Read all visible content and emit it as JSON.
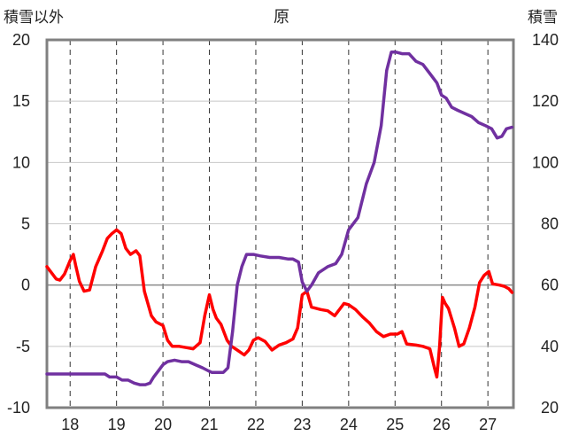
{
  "chart_data": {
    "type": "line",
    "title": "原",
    "ylabel_left": "積雪以外",
    "ylabel_right": "積雪",
    "x_ticks": [
      "18",
      "19",
      "20",
      "21",
      "22",
      "23",
      "24",
      "25",
      "26",
      "27"
    ],
    "xlim": [
      17.5,
      27.55
    ],
    "ylim_left": [
      -10,
      20
    ],
    "ylim_right": [
      20,
      140
    ],
    "y_ticks_left": [
      "-10",
      "-5",
      "0",
      "5",
      "10",
      "15",
      "20"
    ],
    "y_ticks_right": [
      "20",
      "40",
      "60",
      "80",
      "100",
      "120",
      "140"
    ],
    "grid": true,
    "series": [
      {
        "axis": "left",
        "color": "#ff0000",
        "points": [
          [
            17.5,
            1.5
          ],
          [
            17.6,
            1.0
          ],
          [
            17.7,
            0.5
          ],
          [
            17.78,
            0.4
          ],
          [
            17.88,
            0.9
          ],
          [
            18.0,
            2.0
          ],
          [
            18.07,
            2.5
          ],
          [
            18.12,
            1.6
          ],
          [
            18.2,
            0.3
          ],
          [
            18.3,
            -0.5
          ],
          [
            18.42,
            -0.4
          ],
          [
            18.55,
            1.5
          ],
          [
            18.7,
            2.8
          ],
          [
            18.8,
            3.8
          ],
          [
            18.9,
            4.2
          ],
          [
            19.0,
            4.5
          ],
          [
            19.1,
            4.2
          ],
          [
            19.2,
            3.0
          ],
          [
            19.3,
            2.5
          ],
          [
            19.42,
            2.8
          ],
          [
            19.5,
            2.4
          ],
          [
            19.6,
            -0.5
          ],
          [
            19.75,
            -2.5
          ],
          [
            19.85,
            -3.0
          ],
          [
            20.0,
            -3.3
          ],
          [
            20.1,
            -4.5
          ],
          [
            20.2,
            -5.0
          ],
          [
            20.35,
            -5.0
          ],
          [
            20.5,
            -5.1
          ],
          [
            20.65,
            -5.2
          ],
          [
            20.8,
            -4.7
          ],
          [
            20.9,
            -2.5
          ],
          [
            21.0,
            -0.8
          ],
          [
            21.08,
            -2.0
          ],
          [
            21.15,
            -2.7
          ],
          [
            21.25,
            -3.2
          ],
          [
            21.38,
            -4.5
          ],
          [
            21.48,
            -5.0
          ],
          [
            21.6,
            -5.3
          ],
          [
            21.75,
            -5.7
          ],
          [
            21.85,
            -5.3
          ],
          [
            21.95,
            -4.5
          ],
          [
            22.05,
            -4.3
          ],
          [
            22.2,
            -4.6
          ],
          [
            22.35,
            -5.3
          ],
          [
            22.5,
            -4.9
          ],
          [
            22.65,
            -4.7
          ],
          [
            22.8,
            -4.4
          ],
          [
            22.9,
            -3.5
          ],
          [
            23.0,
            -0.8
          ],
          [
            23.1,
            -0.5
          ],
          [
            23.2,
            -1.8
          ],
          [
            23.4,
            -2.0
          ],
          [
            23.55,
            -2.1
          ],
          [
            23.7,
            -2.5
          ],
          [
            23.82,
            -1.9
          ],
          [
            23.9,
            -1.5
          ],
          [
            24.0,
            -1.6
          ],
          [
            24.15,
            -2.0
          ],
          [
            24.3,
            -2.6
          ],
          [
            24.45,
            -3.1
          ],
          [
            24.6,
            -3.8
          ],
          [
            24.75,
            -4.2
          ],
          [
            24.9,
            -4.0
          ],
          [
            25.05,
            -4.0
          ],
          [
            25.15,
            -3.8
          ],
          [
            25.25,
            -4.8
          ],
          [
            25.45,
            -4.9
          ],
          [
            25.6,
            -5.0
          ],
          [
            25.75,
            -5.2
          ],
          [
            25.85,
            -6.8
          ],
          [
            25.9,
            -7.5
          ],
          [
            25.96,
            -5.0
          ],
          [
            26.02,
            -1.0
          ],
          [
            26.08,
            -1.5
          ],
          [
            26.15,
            -1.9
          ],
          [
            26.28,
            -3.5
          ],
          [
            26.38,
            -5.0
          ],
          [
            26.48,
            -4.8
          ],
          [
            26.6,
            -3.5
          ],
          [
            26.72,
            -1.8
          ],
          [
            26.82,
            0.2
          ],
          [
            26.92,
            0.8
          ],
          [
            27.02,
            1.1
          ],
          [
            27.1,
            0.1
          ],
          [
            27.25,
            0.0
          ],
          [
            27.35,
            -0.1
          ],
          [
            27.45,
            -0.3
          ],
          [
            27.52,
            -0.6
          ]
        ]
      },
      {
        "axis": "right",
        "color": "#7030a0",
        "points": [
          [
            17.5,
            31
          ],
          [
            17.6,
            31
          ],
          [
            17.75,
            31
          ],
          [
            17.9,
            31
          ],
          [
            18.05,
            31
          ],
          [
            18.2,
            31
          ],
          [
            18.35,
            31
          ],
          [
            18.5,
            31
          ],
          [
            18.62,
            31
          ],
          [
            18.75,
            31
          ],
          [
            18.85,
            30
          ],
          [
            19.0,
            30
          ],
          [
            19.12,
            29
          ],
          [
            19.25,
            29
          ],
          [
            19.38,
            28
          ],
          [
            19.5,
            27.5
          ],
          [
            19.62,
            27.5
          ],
          [
            19.72,
            28
          ],
          [
            19.8,
            30
          ],
          [
            19.9,
            32
          ],
          [
            20.0,
            34
          ],
          [
            20.1,
            35
          ],
          [
            20.25,
            35.5
          ],
          [
            20.4,
            35
          ],
          [
            20.55,
            35
          ],
          [
            20.7,
            34
          ],
          [
            20.85,
            33
          ],
          [
            20.98,
            32
          ],
          [
            21.05,
            31.5
          ],
          [
            21.15,
            31.5
          ],
          [
            21.3,
            31.5
          ],
          [
            21.4,
            33
          ],
          [
            21.5,
            45
          ],
          [
            21.6,
            60
          ],
          [
            21.7,
            66
          ],
          [
            21.8,
            70
          ],
          [
            21.95,
            70
          ],
          [
            22.1,
            69.5
          ],
          [
            22.3,
            69
          ],
          [
            22.5,
            69
          ],
          [
            22.7,
            68.5
          ],
          [
            22.8,
            68.5
          ],
          [
            22.92,
            67.5
          ],
          [
            23.0,
            61
          ],
          [
            23.1,
            58
          ],
          [
            23.2,
            60
          ],
          [
            23.35,
            64
          ],
          [
            23.55,
            66
          ],
          [
            23.72,
            67
          ],
          [
            23.85,
            70
          ],
          [
            24.0,
            78
          ],
          [
            24.2,
            82
          ],
          [
            24.38,
            93
          ],
          [
            24.55,
            100
          ],
          [
            24.7,
            112
          ],
          [
            24.82,
            130
          ],
          [
            24.92,
            136
          ],
          [
            25.02,
            136
          ],
          [
            25.15,
            135.5
          ],
          [
            25.3,
            135.5
          ],
          [
            25.45,
            133
          ],
          [
            25.6,
            132
          ],
          [
            25.75,
            129
          ],
          [
            25.9,
            126
          ],
          [
            26.0,
            122
          ],
          [
            26.1,
            121
          ],
          [
            26.22,
            118
          ],
          [
            26.35,
            117
          ],
          [
            26.5,
            116
          ],
          [
            26.65,
            115
          ],
          [
            26.8,
            113
          ],
          [
            26.95,
            112
          ],
          [
            27.08,
            111
          ],
          [
            27.2,
            108
          ],
          [
            27.3,
            108.5
          ],
          [
            27.4,
            111
          ],
          [
            27.52,
            111.5
          ]
        ]
      }
    ]
  }
}
